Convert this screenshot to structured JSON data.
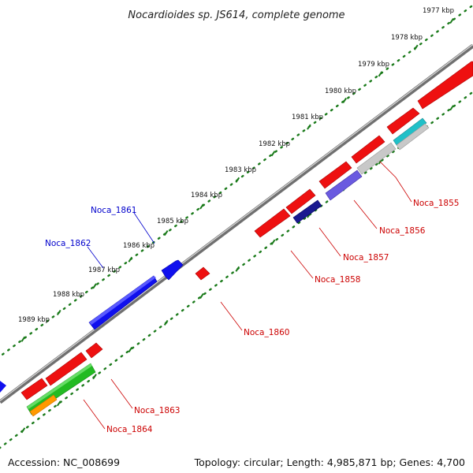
{
  "title": "Nocardioides sp. JS614, complete genome",
  "footer": {
    "accession": "Accession: NC_008699",
    "topology": "Topology: circular; Length: 4,985,871 bp; Genes: 4,700"
  },
  "colors": {
    "forward_gene": "#0000ff",
    "reverse_gene": "#ff0000",
    "forward_label": "#0000cc",
    "reverse_label": "#cc0000",
    "backbone": "#8a8a8a",
    "tick_dots": "#1a7a1a"
  },
  "kbp_ticks": [
    {
      "label": "1977 kbp",
      "pos_kbp": 1977
    },
    {
      "label": "1978 kbp",
      "pos_kbp": 1978
    },
    {
      "label": "1979 kbp",
      "pos_kbp": 1979
    },
    {
      "label": "1980 kbp",
      "pos_kbp": 1980
    },
    {
      "label": "1981 kbp",
      "pos_kbp": 1981
    },
    {
      "label": "1982 kbp",
      "pos_kbp": 1982
    },
    {
      "label": "1983 kbp",
      "pos_kbp": 1983
    },
    {
      "label": "1984 kbp",
      "pos_kbp": 1984
    },
    {
      "label": "1985 kbp",
      "pos_kbp": 1985
    },
    {
      "label": "1986 kbp",
      "pos_kbp": 1986
    },
    {
      "label": "1987 kbp",
      "pos_kbp": 1987
    },
    {
      "label": "1988 kbp",
      "pos_kbp": 1988
    },
    {
      "label": "1989 kbp",
      "pos_kbp": 1989
    }
  ],
  "gene_labels": [
    {
      "name": "Noca_1855",
      "strand": "reverse"
    },
    {
      "name": "Noca_1856",
      "strand": "reverse"
    },
    {
      "name": "Noca_1857",
      "strand": "reverse"
    },
    {
      "name": "Noca_1858",
      "strand": "reverse"
    },
    {
      "name": "Noca_1860",
      "strand": "reverse"
    },
    {
      "name": "Noca_1861",
      "strand": "forward"
    },
    {
      "name": "Noca_1862",
      "strand": "forward"
    },
    {
      "name": "Noca_1863",
      "strand": "reverse"
    },
    {
      "name": "Noca_1864",
      "strand": "reverse"
    }
  ]
}
